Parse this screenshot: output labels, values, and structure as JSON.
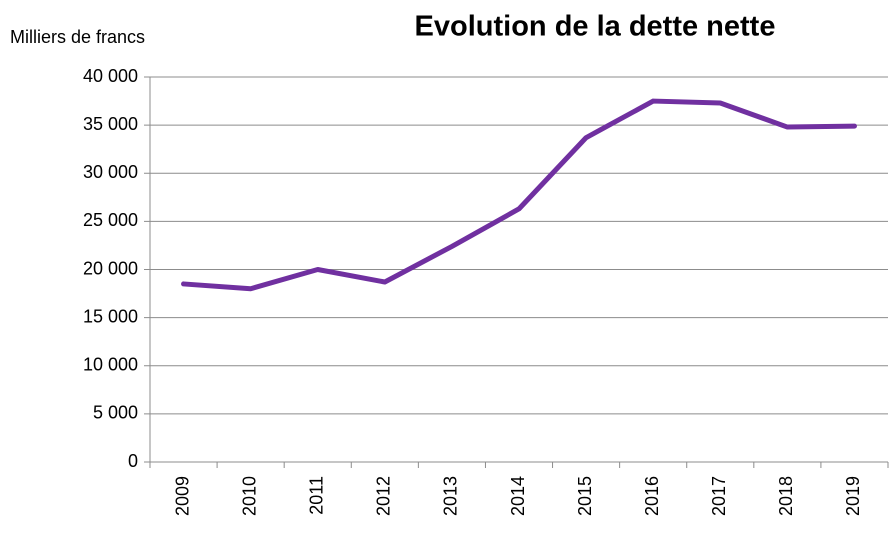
{
  "chart_data": {
    "type": "line",
    "title": "Evolution de la dette nette",
    "y_label": "Milliers de francs",
    "categories": [
      "2009",
      "2010",
      "2011",
      "2012",
      "2013",
      "2014",
      "2015",
      "2016",
      "2017",
      "2018",
      "2019"
    ],
    "series": [
      {
        "name": "Dette nette",
        "color": "#7030a0",
        "values": [
          18500,
          18000,
          20000,
          18700,
          22400,
          26300,
          33700,
          37500,
          37300,
          34800,
          34900
        ]
      }
    ],
    "ylim": [
      0,
      40000
    ],
    "yticks": [
      0,
      {
        "value": 5000,
        "label": "5 000"
      },
      {
        "value": 10000,
        "label": "10 000"
      },
      {
        "value": 15000,
        "label": "15 000"
      },
      {
        "value": 20000,
        "label": "20 000"
      },
      {
        "value": 25000,
        "label": "25 000"
      },
      {
        "value": 30000,
        "label": "30 000"
      },
      {
        "value": 35000,
        "label": "35 000"
      },
      {
        "value": 40000,
        "label": "40 000"
      }
    ],
    "grid": true
  }
}
